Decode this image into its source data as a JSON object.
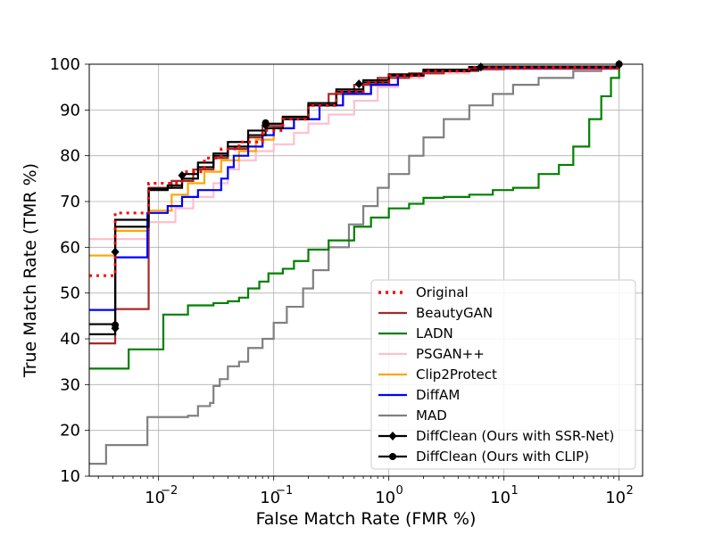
{
  "chart_data": {
    "type": "line",
    "title": "",
    "xlabel": "False Match Rate (FMR %)",
    "ylabel": "True Match Rate (TMR %)",
    "xscale": "log",
    "xlim": [
      0.0025,
      160
    ],
    "ylim": [
      10,
      100
    ],
    "grid": true,
    "legend_position": "lower-right",
    "x_ticks": [
      {
        "value": 0.01,
        "base": "10",
        "exp": "−2"
      },
      {
        "value": 0.1,
        "base": "10",
        "exp": "−1"
      },
      {
        "value": 1,
        "base": "10",
        "exp": "0"
      },
      {
        "value": 10,
        "base": "10",
        "exp": "1"
      },
      {
        "value": 100,
        "base": "10",
        "exp": "2"
      }
    ],
    "y_ticks": [
      "10",
      "20",
      "30",
      "40",
      "50",
      "60",
      "70",
      "80",
      "90",
      "100"
    ],
    "series": [
      {
        "name": "MAD",
        "color": "#808080",
        "style": "solid",
        "step": true,
        "marker": "none",
        "points": [
          [
            0.0025,
            12.7
          ],
          [
            0.0035,
            12.7
          ],
          [
            0.0035,
            16.8
          ],
          [
            0.008,
            16.8
          ],
          [
            0.008,
            22.9
          ],
          [
            0.018,
            23.2
          ],
          [
            0.022,
            25.3
          ],
          [
            0.028,
            26
          ],
          [
            0.03,
            29.7
          ],
          [
            0.034,
            31.2
          ],
          [
            0.04,
            34
          ],
          [
            0.05,
            35
          ],
          [
            0.06,
            38
          ],
          [
            0.08,
            40
          ],
          [
            0.1,
            43.5
          ],
          [
            0.13,
            47
          ],
          [
            0.18,
            51
          ],
          [
            0.22,
            55
          ],
          [
            0.3,
            60
          ],
          [
            0.45,
            65
          ],
          [
            0.6,
            69
          ],
          [
            0.8,
            73
          ],
          [
            1.0,
            76
          ],
          [
            1.5,
            80
          ],
          [
            2,
            84
          ],
          [
            3,
            88
          ],
          [
            5,
            91
          ],
          [
            8,
            93.5
          ],
          [
            12,
            95.5
          ],
          [
            20,
            97
          ],
          [
            40,
            98.5
          ],
          [
            70,
            99.3
          ],
          [
            100,
            100
          ]
        ]
      },
      {
        "name": "LADN",
        "color": "#008000",
        "style": "solid",
        "step": true,
        "marker": "none",
        "points": [
          [
            0.0025,
            33.5
          ],
          [
            0.0055,
            33.5
          ],
          [
            0.0055,
            37.7
          ],
          [
            0.011,
            37.7
          ],
          [
            0.011,
            45.3
          ],
          [
            0.018,
            45.3
          ],
          [
            0.018,
            47.3
          ],
          [
            0.025,
            47.3
          ],
          [
            0.03,
            47.8
          ],
          [
            0.04,
            48.2
          ],
          [
            0.05,
            49
          ],
          [
            0.06,
            51
          ],
          [
            0.075,
            52.5
          ],
          [
            0.09,
            54.3
          ],
          [
            0.12,
            55.3
          ],
          [
            0.15,
            57
          ],
          [
            0.2,
            59.5
          ],
          [
            0.3,
            61.5
          ],
          [
            0.5,
            64.5
          ],
          [
            0.7,
            66.5
          ],
          [
            1.0,
            68.5
          ],
          [
            1.5,
            69.5
          ],
          [
            2,
            70.8
          ],
          [
            3,
            71
          ],
          [
            5,
            71.5
          ],
          [
            8,
            72.5
          ],
          [
            12,
            73
          ],
          [
            20,
            76
          ],
          [
            30,
            78
          ],
          [
            40,
            82
          ],
          [
            55,
            88
          ],
          [
            70,
            93
          ],
          [
            85,
            97
          ],
          [
            100,
            100
          ]
        ]
      },
      {
        "name": "PSGAN++",
        "color": "#ffc0cb",
        "style": "solid",
        "step": true,
        "marker": "none",
        "points": [
          [
            0.0025,
            61.8
          ],
          [
            0.0082,
            61.8
          ],
          [
            0.0082,
            65.5
          ],
          [
            0.014,
            68.5
          ],
          [
            0.02,
            71
          ],
          [
            0.03,
            74
          ],
          [
            0.04,
            77
          ],
          [
            0.05,
            79
          ],
          [
            0.07,
            81
          ],
          [
            0.1,
            82.5
          ],
          [
            0.15,
            85
          ],
          [
            0.2,
            87
          ],
          [
            0.3,
            89
          ],
          [
            0.5,
            92
          ],
          [
            0.8,
            95
          ],
          [
            1.2,
            97
          ],
          [
            2,
            98
          ],
          [
            5,
            98.8
          ],
          [
            10,
            99.3
          ],
          [
            100,
            100
          ]
        ]
      },
      {
        "name": "Clip2Protect",
        "color": "#ffa500",
        "style": "solid",
        "step": true,
        "marker": "none",
        "points": [
          [
            0.0025,
            58.2
          ],
          [
            0.0042,
            58.2
          ],
          [
            0.0042,
            63.6
          ],
          [
            0.0082,
            63.6
          ],
          [
            0.0082,
            68
          ],
          [
            0.013,
            71.5
          ],
          [
            0.018,
            74
          ],
          [
            0.025,
            76.5
          ],
          [
            0.035,
            79
          ],
          [
            0.05,
            81
          ],
          [
            0.07,
            83.5
          ],
          [
            0.1,
            86
          ],
          [
            0.15,
            88
          ],
          [
            0.25,
            91
          ],
          [
            0.4,
            93.5
          ],
          [
            0.7,
            95.5
          ],
          [
            1.2,
            97.5
          ],
          [
            2,
            98.5
          ],
          [
            5,
            99.2
          ],
          [
            100,
            100
          ]
        ]
      },
      {
        "name": "BeautyGAN",
        "color": "#a52a2a",
        "style": "solid",
        "step": true,
        "marker": "none",
        "points": [
          [
            0.0025,
            39
          ],
          [
            0.0042,
            39
          ],
          [
            0.0042,
            46.5
          ],
          [
            0.0082,
            46.5
          ],
          [
            0.0082,
            73
          ],
          [
            0.013,
            74.5
          ],
          [
            0.02,
            77
          ],
          [
            0.03,
            79.5
          ],
          [
            0.04,
            81.5
          ],
          [
            0.06,
            84
          ],
          [
            0.08,
            86.5
          ],
          [
            0.12,
            88.5
          ],
          [
            0.2,
            91
          ],
          [
            0.3,
            93.5
          ],
          [
            0.5,
            95.5
          ],
          [
            0.8,
            97
          ],
          [
            1.5,
            98
          ],
          [
            3,
            98.5
          ],
          [
            6,
            98.9
          ],
          [
            10,
            99
          ],
          [
            100,
            100
          ]
        ]
      },
      {
        "name": "DiffAM",
        "color": "#0000ff",
        "style": "solid",
        "step": true,
        "marker": "none",
        "points": [
          [
            0.0025,
            46.3
          ],
          [
            0.0042,
            46.3
          ],
          [
            0.0042,
            57.8
          ],
          [
            0.008,
            57.8
          ],
          [
            0.008,
            67.5
          ],
          [
            0.011,
            67.5
          ],
          [
            0.012,
            69
          ],
          [
            0.016,
            71
          ],
          [
            0.022,
            72.5
          ],
          [
            0.03,
            72.5
          ],
          [
            0.035,
            75
          ],
          [
            0.04,
            77.5
          ],
          [
            0.045,
            80
          ],
          [
            0.06,
            82
          ],
          [
            0.08,
            84.5
          ],
          [
            0.1,
            86
          ],
          [
            0.15,
            88
          ],
          [
            0.25,
            91
          ],
          [
            0.4,
            93.5
          ],
          [
            0.7,
            95.5
          ],
          [
            1.2,
            97.5
          ],
          [
            2,
            98.5
          ],
          [
            5,
            99.3
          ],
          [
            100,
            100
          ]
        ]
      },
      {
        "name": "DiffClean (Ours with CLIP)",
        "color": "#000000",
        "style": "solid",
        "step": true,
        "marker": "circle",
        "points": [
          [
            0.0025,
            41
          ],
          [
            0.0042,
            41
          ],
          [
            0.0042,
            66
          ],
          [
            0.0082,
            66
          ],
          [
            0.0082,
            72.5
          ],
          [
            0.012,
            73
          ],
          [
            0.016,
            75
          ],
          [
            0.022,
            77.5
          ],
          [
            0.03,
            80
          ],
          [
            0.04,
            82
          ],
          [
            0.06,
            84.5
          ],
          [
            0.085,
            86
          ],
          [
            0.12,
            88
          ],
          [
            0.2,
            91
          ],
          [
            0.35,
            94
          ],
          [
            0.6,
            96
          ],
          [
            1.0,
            97.5
          ],
          [
            2,
            98.5
          ],
          [
            5,
            99.4
          ],
          [
            100,
            100
          ]
        ]
      },
      {
        "name": "DiffClean (Ours with SSR-Net)",
        "color": "#000000",
        "style": "solid",
        "step": true,
        "marker": "diamond",
        "points": [
          [
            0.0025,
            43.2
          ],
          [
            0.0042,
            43.2
          ],
          [
            0.0042,
            64.5
          ],
          [
            0.0082,
            64.5
          ],
          [
            0.0082,
            72.8
          ],
          [
            0.012,
            73.5
          ],
          [
            0.016,
            76
          ],
          [
            0.022,
            78.5
          ],
          [
            0.03,
            80.5
          ],
          [
            0.04,
            83
          ],
          [
            0.06,
            85.5
          ],
          [
            0.085,
            87
          ],
          [
            0.12,
            88.5
          ],
          [
            0.2,
            91.5
          ],
          [
            0.35,
            94.5
          ],
          [
            0.6,
            96.5
          ],
          [
            1.0,
            97.8
          ],
          [
            2,
            98.8
          ],
          [
            6,
            99.5
          ],
          [
            100,
            100
          ]
        ]
      },
      {
        "name": "Original",
        "color": "#ff0000",
        "style": "dotted",
        "step": true,
        "marker": "none",
        "points": [
          [
            0.0025,
            53.8
          ],
          [
            0.0042,
            53.8
          ],
          [
            0.0042,
            67.5
          ],
          [
            0.0082,
            67.5
          ],
          [
            0.0082,
            74
          ],
          [
            0.012,
            74
          ],
          [
            0.016,
            76.5
          ],
          [
            0.025,
            79.5
          ],
          [
            0.035,
            81.5
          ],
          [
            0.05,
            83
          ],
          [
            0.08,
            85.5
          ],
          [
            0.12,
            88
          ],
          [
            0.2,
            91
          ],
          [
            0.35,
            94
          ],
          [
            0.6,
            96
          ],
          [
            1,
            97.5
          ],
          [
            2,
            98.5
          ],
          [
            5,
            99.3
          ],
          [
            100,
            100
          ]
        ]
      }
    ],
    "marker_points": {
      "diamond": [
        [
          0.0042,
          59
        ],
        [
          0.0042,
          42.3
        ],
        [
          0.016,
          75.7
        ],
        [
          0.085,
          86.7
        ],
        [
          0.55,
          95.7
        ],
        [
          6.3,
          99.4
        ],
        [
          100,
          100
        ]
      ],
      "circle": [
        [
          0.0042,
          43
        ],
        [
          0.085,
          87.2
        ],
        [
          100,
          100
        ]
      ]
    },
    "legend_order": [
      "Original",
      "BeautyGAN",
      "LADN",
      "PSGAN++",
      "Clip2Protect",
      "DiffAM",
      "MAD",
      "DiffClean (Ours with SSR-Net)",
      "DiffClean (Ours with CLIP)"
    ]
  }
}
